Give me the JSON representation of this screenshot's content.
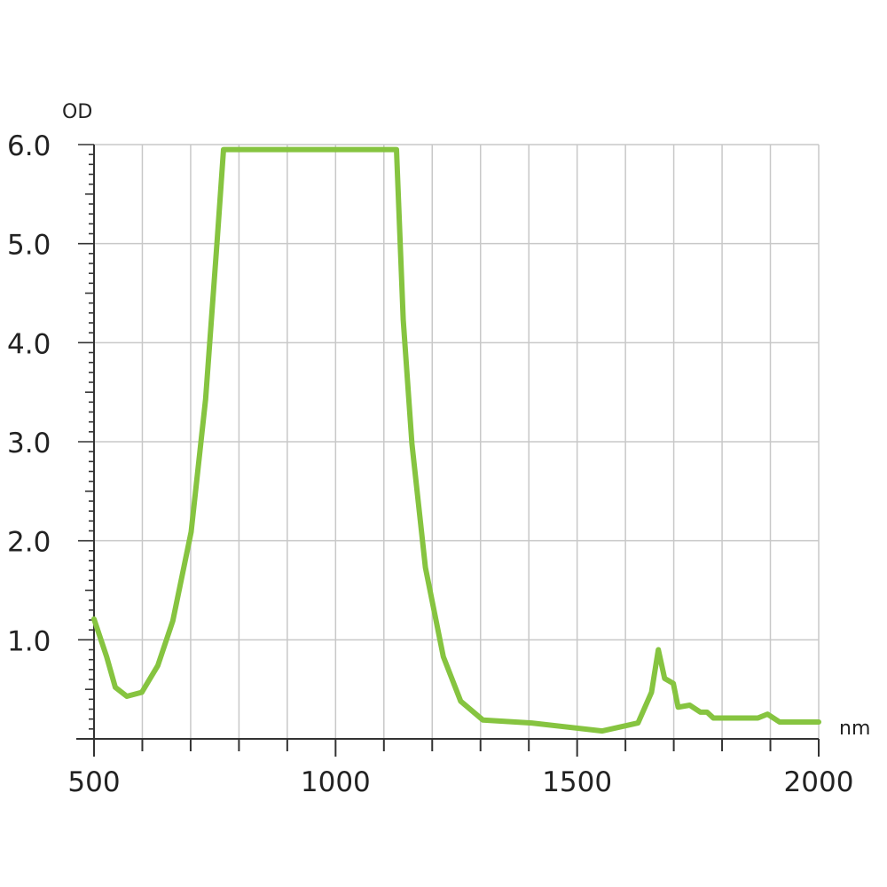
{
  "chart_data": {
    "type": "line",
    "title": "",
    "xlabel": "nm",
    "ylabel": "OD",
    "xlim": [
      500,
      2000
    ],
    "ylim": [
      0,
      6.0
    ],
    "x_ticks": [
      500,
      1000,
      1500,
      2000
    ],
    "x_tick_labels": [
      "500",
      "1000",
      "1500",
      "2000"
    ],
    "y_ticks": [
      1.0,
      2.0,
      3.0,
      4.0,
      5.0,
      6.0
    ],
    "y_tick_labels": [
      "1.0",
      "2.0",
      "3.0",
      "4.0",
      "5.0",
      "6.0"
    ],
    "grid": true,
    "x_grid_step": 100,
    "y_minor_step": 0.1,
    "line_color": "#86c440",
    "series": [
      {
        "x": [
          500,
          526,
          544,
          568,
          599,
          632,
          663,
          701,
          731,
          755,
          768,
          1126,
          1140,
          1158,
          1186,
          1223,
          1259,
          1305,
          1406,
          1552,
          1626,
          1654,
          1668,
          1681,
          1699,
          1709,
          1733,
          1755,
          1769,
          1782,
          1874,
          1894,
          1919,
          2000
        ],
        "y": [
          1.21,
          0.83,
          0.52,
          0.43,
          0.47,
          0.74,
          1.19,
          2.09,
          3.43,
          5.04,
          5.95,
          5.95,
          4.23,
          2.98,
          1.73,
          0.83,
          0.38,
          0.19,
          0.16,
          0.08,
          0.16,
          0.47,
          0.9,
          0.61,
          0.56,
          0.32,
          0.34,
          0.27,
          0.27,
          0.21,
          0.21,
          0.25,
          0.17,
          0.17
        ]
      }
    ]
  }
}
